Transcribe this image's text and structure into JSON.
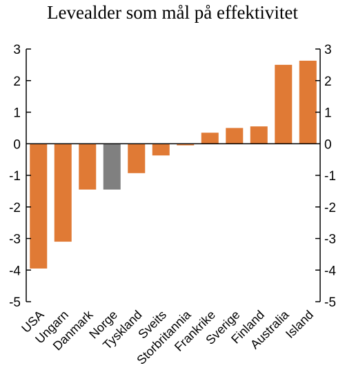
{
  "chart_data": {
    "type": "bar",
    "title": "Levealder som mål på effektivitet",
    "xlabel": "",
    "ylabel": "",
    "ylim": [
      -5,
      3
    ],
    "yticks": [
      3,
      2,
      1,
      0,
      -1,
      -2,
      -3,
      -4,
      -5
    ],
    "ytick_labels": [
      "3",
      "2",
      "1",
      "0",
      "-1",
      "-2",
      "-3",
      "-4",
      "-5"
    ],
    "grid": false,
    "axes": "left and right y-axes with matching ticks",
    "categories": [
      "USA",
      "Ungarn",
      "Danmark",
      "Norge",
      "Tyskland",
      "Sveits",
      "Storbritannia",
      "Frankrike",
      "Sverige",
      "Finland",
      "Australia",
      "Island"
    ],
    "values": [
      -3.95,
      -3.1,
      -1.45,
      -1.45,
      -0.93,
      -0.37,
      -0.05,
      0.35,
      0.5,
      0.55,
      2.5,
      2.63
    ],
    "colors": {
      "default": "#E07A35",
      "highlight": "#808080",
      "highlight_category": "Norge"
    }
  }
}
